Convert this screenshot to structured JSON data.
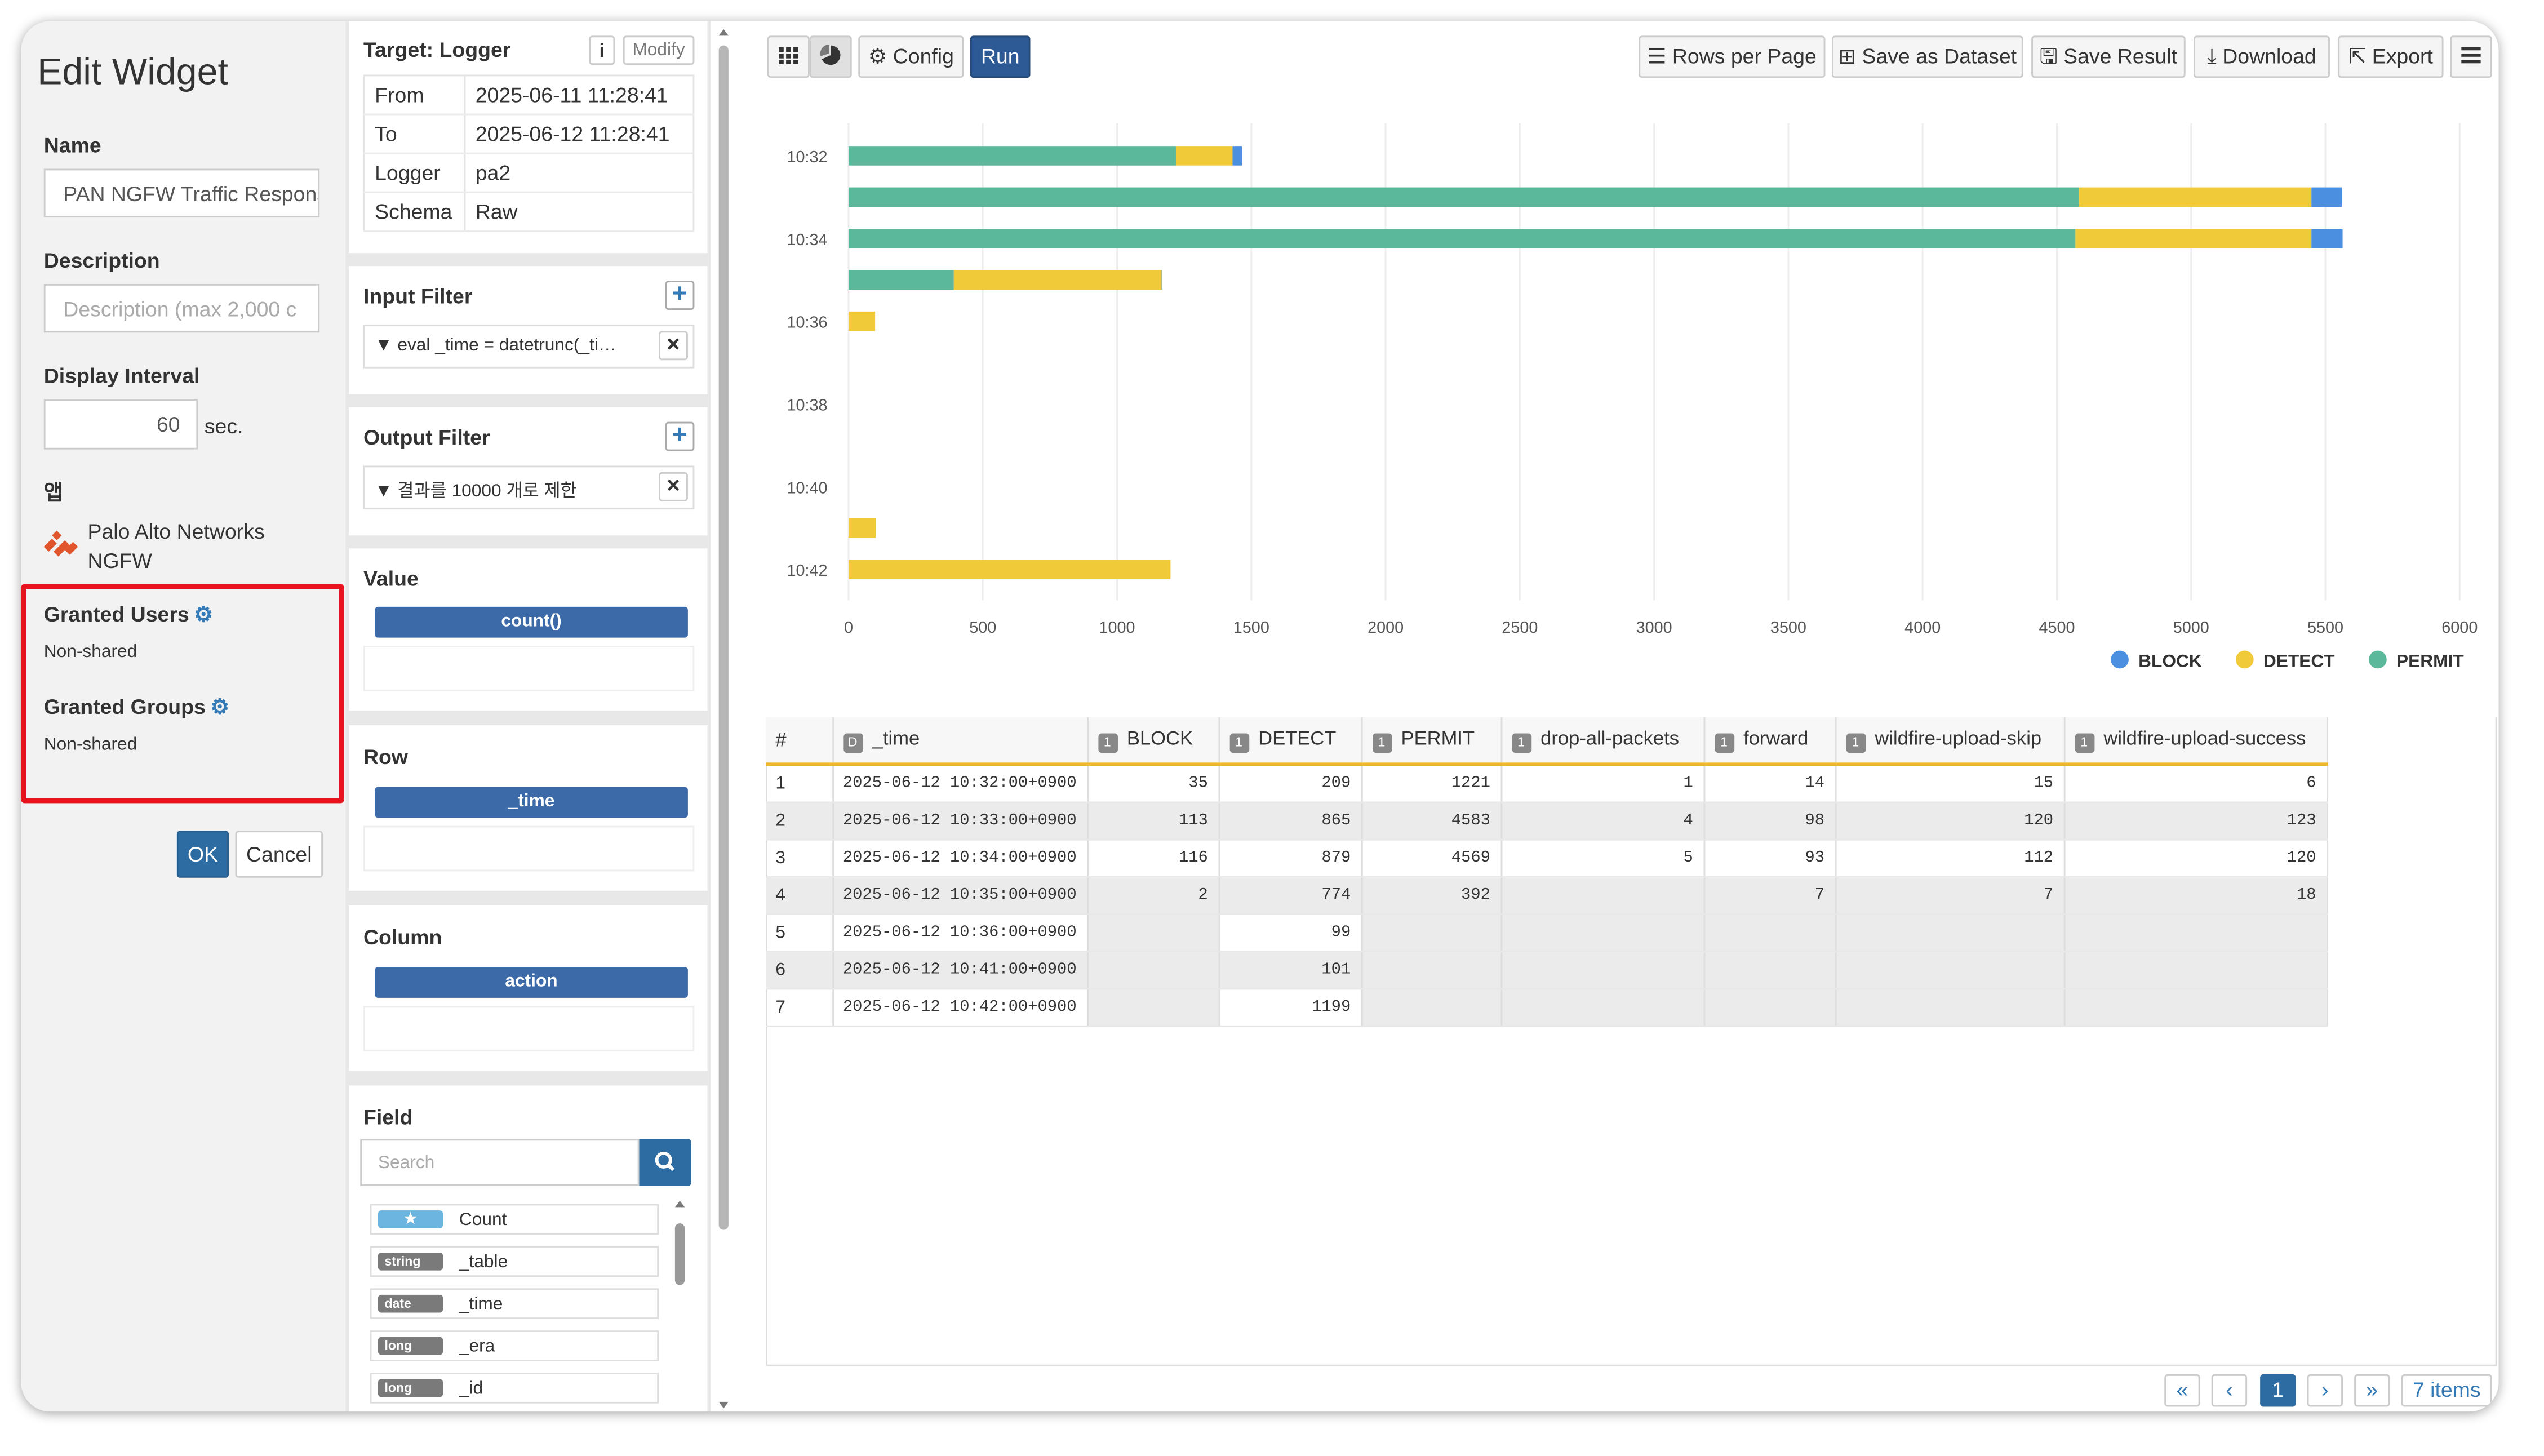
{
  "left": {
    "title": "Edit Widget",
    "name_label": "Name",
    "name_value": "PAN NGFW Traffic Response",
    "description_label": "Description",
    "description_placeholder": "Description (max 2,000 c",
    "interval_label": "Display Interval",
    "interval_value": "60",
    "interval_unit": "sec.",
    "app_label": "앱",
    "app_name": "Palo Alto Networks NGFW",
    "granted_users_label": "Granted Users",
    "granted_users_value": "Non-shared",
    "granted_groups_label": "Granted Groups",
    "granted_groups_value": "Non-shared",
    "ok_label": "OK",
    "cancel_label": "Cancel"
  },
  "middle": {
    "target_title": "Target: Logger",
    "info_label": "i",
    "modify_label": "Modify",
    "target_rows": [
      {
        "key": "From",
        "value": "2025-06-11 11:28:41"
      },
      {
        "key": "To",
        "value": "2025-06-12 11:28:41"
      },
      {
        "key": "Logger",
        "value": "pa2"
      },
      {
        "key": "Schema",
        "value": "Raw"
      }
    ],
    "input_filter_title": "Input Filter",
    "input_filter_item": "eval _time = datetrunc(_ti…",
    "output_filter_title": "Output Filter",
    "output_filter_item": "결과를 10000 개로 제한",
    "value_title": "Value",
    "value_pill": "count()",
    "row_title": "Row",
    "row_pill": "_time",
    "column_title": "Column",
    "column_pill": "action",
    "field_title": "Field",
    "search_placeholder": "Search",
    "fields": [
      {
        "type": "★",
        "name": "Count"
      },
      {
        "type": "string",
        "name": "_table"
      },
      {
        "type": "date",
        "name": "_time"
      },
      {
        "type": "long",
        "name": "_era"
      },
      {
        "type": "long",
        "name": "_id"
      }
    ]
  },
  "toolbar": {
    "config": "Config",
    "run": "Run",
    "rows_per_page": "Rows per Page",
    "save_dataset": "Save as Dataset",
    "save_result": "Save Result",
    "download": "Download",
    "export": "Export"
  },
  "chart_data": {
    "type": "bar",
    "orientation": "horizontal",
    "stacked": true,
    "categories": [
      "10:32",
      "10:33",
      "10:34",
      "10:35",
      "10:36",
      "10:41",
      "10:42"
    ],
    "y_tick_labels": [
      "10:32",
      "10:34",
      "10:36",
      "10:38",
      "10:40",
      "10:42"
    ],
    "x_ticks": [
      0,
      500,
      1000,
      1500,
      2000,
      2500,
      3000,
      3500,
      4000,
      4500,
      5000,
      5500,
      6000
    ],
    "xlim": [
      0,
      6000
    ],
    "series": [
      {
        "name": "PERMIT",
        "color": "#5cb89a",
        "values": [
          1221,
          4583,
          4569,
          392,
          0,
          0,
          0
        ]
      },
      {
        "name": "DETECT",
        "color": "#f1ca3a",
        "values": [
          209,
          865,
          879,
          774,
          99,
          101,
          1199
        ]
      },
      {
        "name": "BLOCK",
        "color": "#4b8fe0",
        "values": [
          35,
          113,
          116,
          2,
          0,
          0,
          0
        ]
      }
    ],
    "legend_order": [
      "BLOCK",
      "DETECT",
      "PERMIT"
    ],
    "legend_position": "bottom-right",
    "grid": true
  },
  "table": {
    "headers": [
      {
        "icon": "",
        "label": "#"
      },
      {
        "icon": "D",
        "label": "_time"
      },
      {
        "icon": "1",
        "label": "BLOCK"
      },
      {
        "icon": "1",
        "label": "DETECT"
      },
      {
        "icon": "1",
        "label": "PERMIT"
      },
      {
        "icon": "1",
        "label": "drop-all-packets"
      },
      {
        "icon": "1",
        "label": "forward"
      },
      {
        "icon": "1",
        "label": "wildfire-upload-skip"
      },
      {
        "icon": "1",
        "label": "wildfire-upload-success"
      }
    ],
    "rows": [
      [
        "1",
        "2025-06-12 10:32:00+0900",
        "35",
        "209",
        "1221",
        "1",
        "14",
        "15",
        "6"
      ],
      [
        "2",
        "2025-06-12 10:33:00+0900",
        "113",
        "865",
        "4583",
        "4",
        "98",
        "120",
        "123"
      ],
      [
        "3",
        "2025-06-12 10:34:00+0900",
        "116",
        "879",
        "4569",
        "5",
        "93",
        "112",
        "120"
      ],
      [
        "4",
        "2025-06-12 10:35:00+0900",
        "2",
        "774",
        "392",
        "",
        "7",
        "7",
        "18"
      ],
      [
        "5",
        "2025-06-12 10:36:00+0900",
        "",
        "99",
        "",
        "",
        "",
        "",
        ""
      ],
      [
        "6",
        "2025-06-12 10:41:00+0900",
        "",
        "101",
        "",
        "",
        "",
        "",
        ""
      ],
      [
        "7",
        "2025-06-12 10:42:00+0900",
        "",
        "1199",
        "",
        "",
        "",
        "",
        ""
      ]
    ]
  },
  "pagination": {
    "first": "«",
    "prev": "‹",
    "current": "1",
    "next": "›",
    "last": "»",
    "total": "7 items"
  }
}
